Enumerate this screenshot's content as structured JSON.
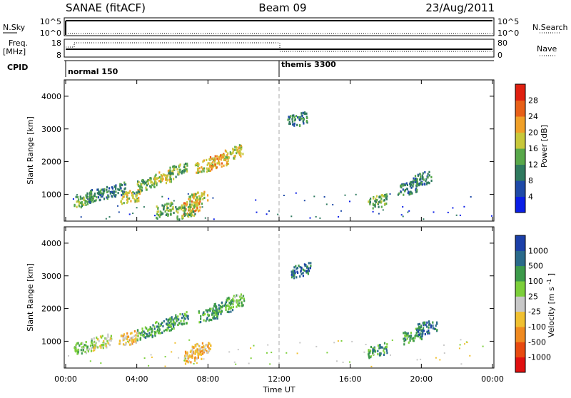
{
  "header": {
    "title_left": "SANAE (fitACF)",
    "title_center": "Beam 09",
    "title_right": "23/Aug/2011"
  },
  "strips": {
    "nsky_label": "N.Sky",
    "nsky_ticks": [
      "10^5",
      "10^0"
    ],
    "nsky_right_ticks": [
      "10^5",
      "10^0"
    ],
    "nsearch_label": "N.Search",
    "freq_label": "Freq.",
    "freq_unit": "[MHz]",
    "freq_ticks": [
      "18",
      "8"
    ],
    "nave_ticks": [
      "80",
      "0"
    ],
    "nave_label": "Nave",
    "cpid_label": "CPID",
    "cpid_segments": [
      {
        "name": "normal 150",
        "start_h": 0
      },
      {
        "name": "themis 3300",
        "start_h": 12
      }
    ]
  },
  "axes": {
    "x_ticks": [
      "00:00",
      "04:00",
      "08:00",
      "12:00",
      "16:00",
      "20:00",
      "00:00"
    ],
    "x_label": "Time UT",
    "y_label": "Slant Range [km]",
    "y_ticks": [
      "1000",
      "2000",
      "3000",
      "4000"
    ]
  },
  "colorbars": {
    "power": {
      "label": "Power [dB]",
      "ticks": [
        "4",
        "8",
        "12",
        "16",
        "20",
        "24",
        "28"
      ],
      "colors": [
        "#0a1ee6",
        "#1e4aa8",
        "#2f7a5f",
        "#58a84a",
        "#c8c83a",
        "#f0a028",
        "#e86018",
        "#e02010"
      ]
    },
    "velocity": {
      "label": "Velocity [m s",
      "label_sup": "-1",
      "label_end": "]",
      "ticks": [
        "1000",
        "500",
        "100",
        "25",
        "-25",
        "-100",
        "-500",
        "-1000"
      ],
      "colors": [
        "#1b3fa8",
        "#2a6a8a",
        "#3c9a4a",
        "#7ccf3a",
        "#c8c8c8",
        "#f0c030",
        "#f08a20",
        "#e84a10",
        "#e01010"
      ]
    }
  },
  "chart_data": {
    "type": "heatmap",
    "x_unit": "hours UT",
    "xlim": [
      0,
      24
    ],
    "ylim": [
      180,
      4500
    ],
    "marker": {
      "x": 12,
      "style": "dashed"
    },
    "power_clusters": [
      {
        "t": 1.0,
        "r": 850,
        "level": 3
      },
      {
        "t": 1.6,
        "r": 1000,
        "level": 2
      },
      {
        "t": 2.8,
        "r": 1150,
        "level": 2
      },
      {
        "t": 3.6,
        "r": 950,
        "level": 4
      },
      {
        "t": 4.5,
        "r": 1350,
        "level": 3
      },
      {
        "t": 5.5,
        "r": 1550,
        "level": 4
      },
      {
        "t": 6.3,
        "r": 1750,
        "level": 3
      },
      {
        "t": 7.0,
        "r": 650,
        "level": 5
      },
      {
        "t": 7.4,
        "r": 900,
        "level": 4
      },
      {
        "t": 7.8,
        "r": 1900,
        "level": 4
      },
      {
        "t": 8.6,
        "r": 2050,
        "level": 5
      },
      {
        "t": 9.4,
        "r": 2300,
        "level": 4
      },
      {
        "t": 5.6,
        "r": 550,
        "level": 3
      },
      {
        "t": 6.7,
        "r": 500,
        "level": 3
      },
      {
        "t": 13.0,
        "r": 3300,
        "level": 2
      },
      {
        "t": 17.5,
        "r": 800,
        "level": 3
      },
      {
        "t": 19.2,
        "r": 1200,
        "level": 2
      },
      {
        "t": 20.0,
        "r": 1500,
        "level": 2
      }
    ],
    "velocity_clusters": [
      {
        "t": 1.0,
        "r": 850,
        "level": 5
      },
      {
        "t": 2.0,
        "r": 1000,
        "level": 4
      },
      {
        "t": 3.5,
        "r": 1100,
        "level": 3
      },
      {
        "t": 4.5,
        "r": 1300,
        "level": 6
      },
      {
        "t": 5.5,
        "r": 1500,
        "level": 6
      },
      {
        "t": 6.3,
        "r": 1700,
        "level": 6
      },
      {
        "t": 7.2,
        "r": 600,
        "level": 3
      },
      {
        "t": 7.6,
        "r": 800,
        "level": 3
      },
      {
        "t": 8.0,
        "r": 1850,
        "level": 6
      },
      {
        "t": 8.8,
        "r": 2050,
        "level": 6
      },
      {
        "t": 9.5,
        "r": 2250,
        "level": 5
      },
      {
        "t": 13.2,
        "r": 3200,
        "level": 7
      },
      {
        "t": 17.5,
        "r": 750,
        "level": 6
      },
      {
        "t": 19.5,
        "r": 1200,
        "level": 6
      },
      {
        "t": 20.3,
        "r": 1450,
        "level": 7
      }
    ]
  }
}
